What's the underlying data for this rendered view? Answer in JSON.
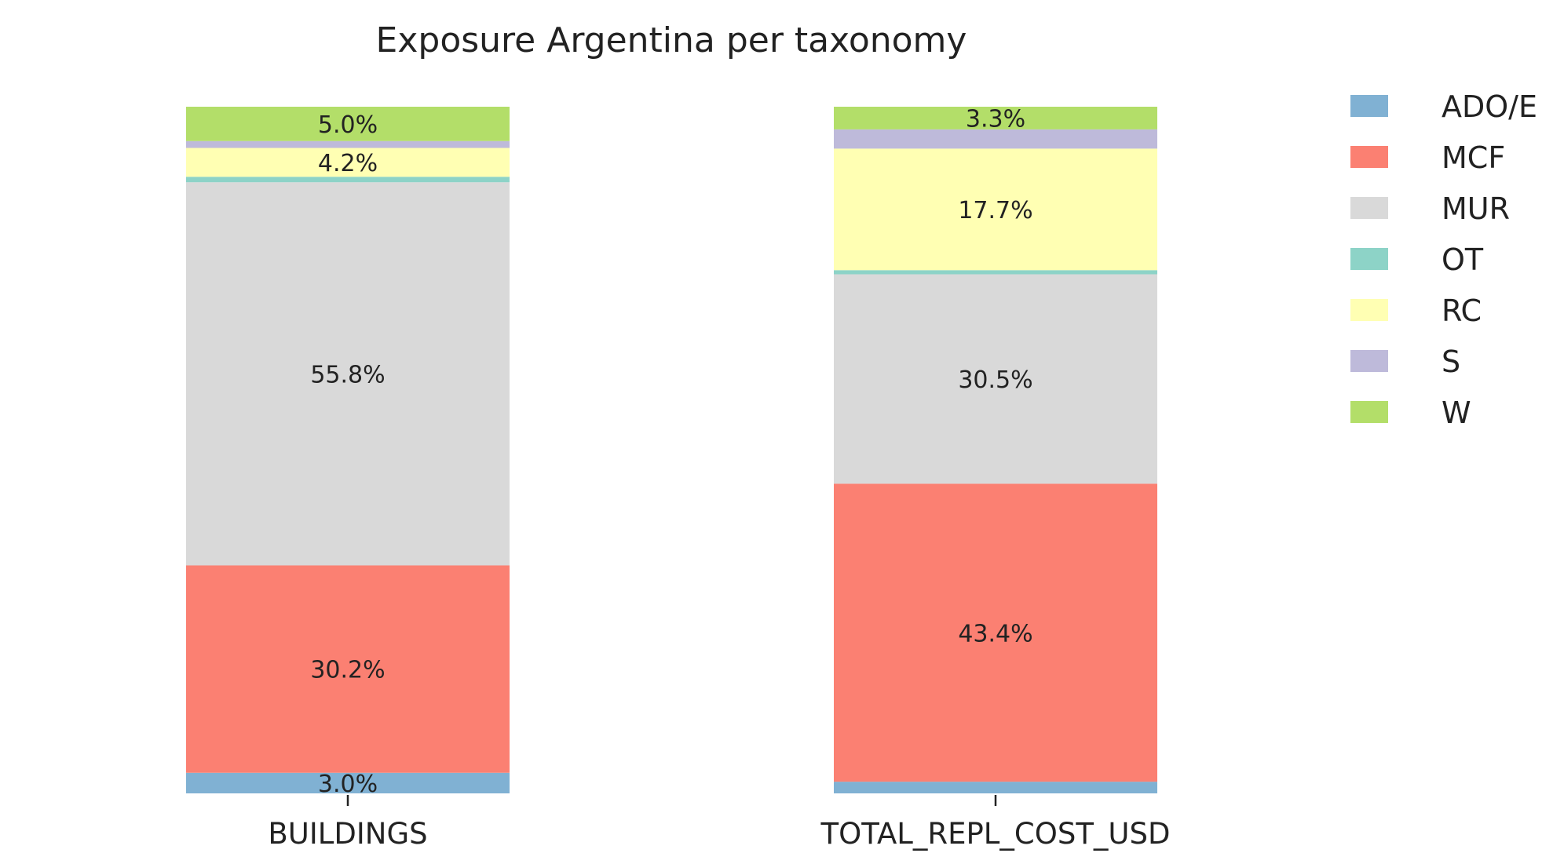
{
  "chart_data": {
    "type": "bar",
    "stacked": true,
    "normalized": true,
    "title": "Exposure Argentina per taxonomy",
    "xlabel": "",
    "ylabel": "",
    "ylim": [
      0,
      100
    ],
    "grid": false,
    "legend_position": "right",
    "categories": [
      "BUILDINGS",
      "TOTAL_REPL_COST_USD"
    ],
    "series": [
      {
        "name": "ADO/E",
        "color": "#80b1d3",
        "values": [
          3.0,
          1.7
        ],
        "labels": [
          "3.0%",
          ""
        ]
      },
      {
        "name": "MCF",
        "color": "#fb8072",
        "values": [
          30.2,
          43.4
        ],
        "labels": [
          "30.2%",
          "43.4%"
        ]
      },
      {
        "name": "MUR",
        "color": "#d9d9d9",
        "values": [
          55.8,
          30.5
        ],
        "labels": [
          "55.8%",
          "30.5%"
        ]
      },
      {
        "name": "OT",
        "color": "#8dd3c7",
        "values": [
          0.8,
          0.6
        ],
        "labels": [
          "",
          ""
        ]
      },
      {
        "name": "RC",
        "color": "#ffffb3",
        "values": [
          4.2,
          17.7
        ],
        "labels": [
          "4.2%",
          "17.7%"
        ]
      },
      {
        "name": "S",
        "color": "#bebada",
        "values": [
          1.0,
          2.8
        ],
        "labels": [
          "",
          ""
        ]
      },
      {
        "name": "W",
        "color": "#b3de69",
        "values": [
          5.0,
          3.3
        ],
        "labels": [
          "5.0%",
          "3.3%"
        ]
      }
    ]
  }
}
